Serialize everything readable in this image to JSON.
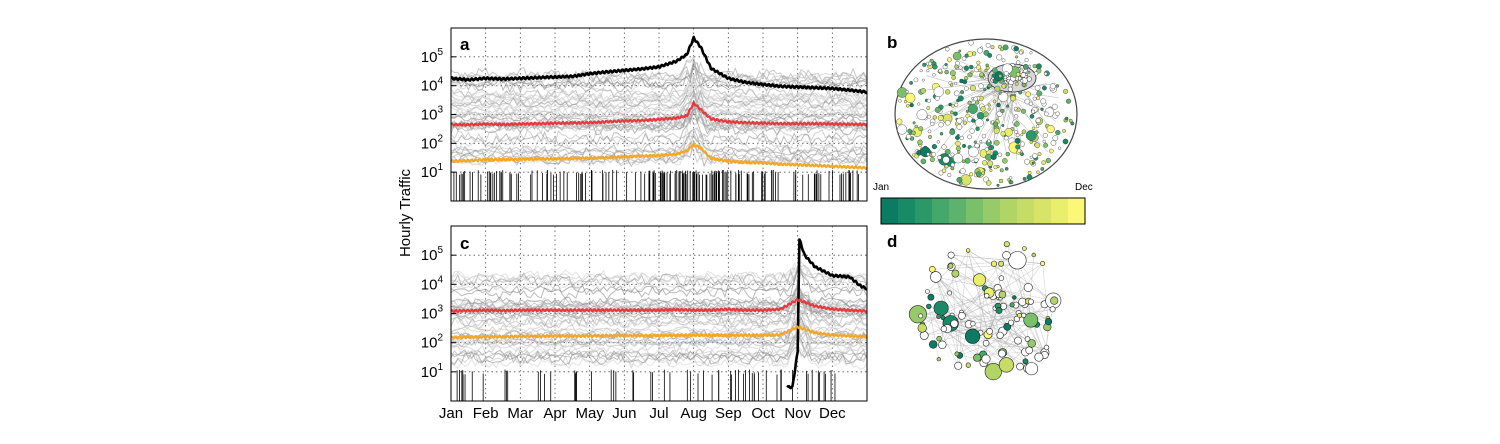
{
  "figure": {
    "panel_labels": [
      "a",
      "b",
      "c",
      "d"
    ],
    "ylabel": "Hourly Traffic",
    "yticks": [
      {
        "exp": 1,
        "base": "10",
        "sup": "1"
      },
      {
        "exp": 2,
        "base": "10",
        "sup": "2"
      },
      {
        "exp": 3,
        "base": "10",
        "sup": "3"
      },
      {
        "exp": 4,
        "base": "10",
        "sup": "4"
      },
      {
        "exp": 5,
        "base": "10",
        "sup": "5"
      }
    ],
    "xticks": [
      "Jan",
      "Feb",
      "Mar",
      "Apr",
      "May",
      "Jun",
      "Jul",
      "Aug",
      "Sep",
      "Oct",
      "Nov",
      "Dec"
    ],
    "colorbar": {
      "left_label": "Jan",
      "right_label": "Dec",
      "colors": [
        "#0b7b63",
        "#198a66",
        "#2c9868",
        "#44a86a",
        "#5db36b",
        "#7abf6a",
        "#97ca68",
        "#b1d466",
        "#c6dc66",
        "#d8e468",
        "#e9ee6b",
        "#fbf877"
      ]
    },
    "colors": {
      "top": "#000000",
      "median": "#e8383c",
      "lower": "#f5a623",
      "background": "#8c8c8c"
    }
  },
  "chart_data": [
    {
      "type": "line",
      "panel": "a",
      "yscale": "log",
      "ylim": [
        1,
        1000000
      ],
      "xlim": [
        0,
        12
      ],
      "grid": true,
      "categories": [
        "Jan",
        "Feb",
        "Mar",
        "Apr",
        "May",
        "Jun",
        "Jul",
        "Aug",
        "Sep",
        "Oct",
        "Nov",
        "Dec"
      ],
      "series": [
        {
          "color": "#000000",
          "x": [
            0,
            0.5,
            1,
            1.5,
            2,
            2.5,
            3,
            3.5,
            4,
            4.5,
            5,
            5.5,
            6,
            6.5,
            6.8,
            7.0,
            7.2,
            7.5,
            8,
            8.5,
            9,
            9.5,
            10,
            10.5,
            11,
            11.5,
            12
          ],
          "y": [
            18000,
            16000,
            18000,
            17000,
            18000,
            19000,
            20000,
            21000,
            26000,
            30000,
            34000,
            38000,
            45000,
            70000,
            120000,
            450000,
            220000,
            40000,
            18000,
            13000,
            11000,
            9500,
            9000,
            8500,
            8000,
            7000,
            6000
          ]
        },
        {
          "color": "#e8383c",
          "x": [
            0,
            0.5,
            1,
            1.5,
            2,
            2.5,
            3,
            3.5,
            4,
            4.5,
            5,
            5.5,
            6,
            6.5,
            6.8,
            7.0,
            7.2,
            7.5,
            8,
            8.5,
            9,
            9.5,
            10,
            10.5,
            11,
            11.5,
            12
          ],
          "y": [
            450,
            440,
            470,
            450,
            470,
            480,
            500,
            510,
            520,
            560,
            600,
            620,
            680,
            750,
            900,
            2500,
            1500,
            700,
            560,
            520,
            500,
            480,
            480,
            480,
            470,
            460,
            450
          ]
        },
        {
          "color": "#f5a623",
          "x": [
            0,
            0.5,
            1,
            1.5,
            2,
            2.5,
            3,
            3.5,
            4,
            4.5,
            5,
            5.5,
            6,
            6.5,
            6.8,
            7.0,
            7.2,
            7.5,
            8,
            8.5,
            9,
            9.5,
            10,
            10.5,
            11,
            11.5,
            12
          ],
          "y": [
            24,
            25,
            27,
            27,
            28,
            29,
            29,
            30,
            31,
            32,
            34,
            36,
            38,
            42,
            55,
            90,
            70,
            30,
            24,
            22,
            21,
            19,
            18,
            17,
            16,
            15,
            14
          ]
        }
      ]
    },
    {
      "type": "line",
      "panel": "c",
      "yscale": "log",
      "ylim": [
        1,
        1000000
      ],
      "xlim": [
        0,
        12
      ],
      "grid": true,
      "categories": [
        "Jan",
        "Feb",
        "Mar",
        "Apr",
        "May",
        "Jun",
        "Jul",
        "Aug",
        "Sep",
        "Oct",
        "Nov",
        "Dec"
      ],
      "series": [
        {
          "color": "#000000",
          "x": [
            9.7,
            9.85,
            10.0,
            10.05,
            10.2,
            10.5,
            11,
            11.5,
            11.8,
            12
          ],
          "y": [
            3,
            3,
            50,
            350000,
            100000,
            40000,
            20000,
            18000,
            9000,
            7000
          ]
        },
        {
          "color": "#e8383c",
          "x": [
            0,
            0.5,
            1,
            1.5,
            2,
            2.5,
            3,
            3.5,
            4,
            4.5,
            5,
            5.5,
            6,
            6.5,
            7,
            7.5,
            8,
            8.5,
            9,
            9.5,
            10,
            10.5,
            11,
            11.5,
            12
          ],
          "y": [
            1200,
            1250,
            1300,
            1250,
            1300,
            1300,
            1300,
            1300,
            1300,
            1300,
            1300,
            1300,
            1300,
            1350,
            1300,
            1300,
            1400,
            1300,
            1300,
            1400,
            3000,
            1800,
            1400,
            1300,
            1200
          ]
        },
        {
          "color": "#f5a623",
          "x": [
            0,
            0.5,
            1,
            1.5,
            2,
            2.5,
            3,
            3.5,
            4,
            4.5,
            5,
            5.5,
            6,
            6.5,
            7,
            7.5,
            8,
            8.5,
            9,
            9.5,
            10,
            10.5,
            11,
            11.5,
            12
          ],
          "y": [
            150,
            155,
            160,
            160,
            165,
            165,
            170,
            170,
            170,
            175,
            175,
            175,
            175,
            180,
            180,
            180,
            180,
            180,
            180,
            185,
            350,
            220,
            180,
            170,
            160
          ]
        }
      ]
    }
  ]
}
